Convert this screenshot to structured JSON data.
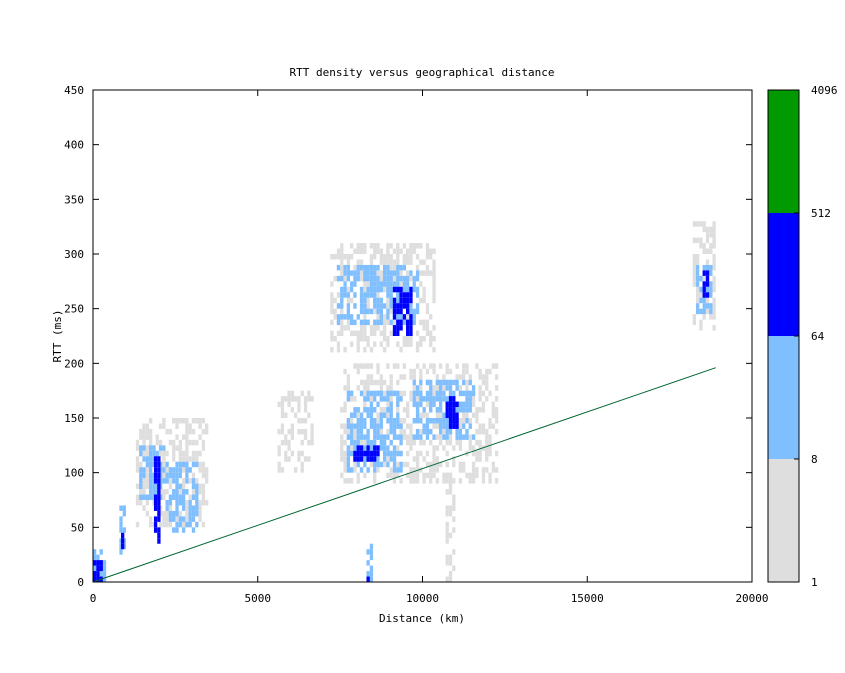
{
  "chart_data": {
    "type": "heatmap",
    "title": "RTT density versus geographical distance",
    "xlabel": "Distance (km)",
    "ylabel": "RTT (ms)",
    "xlim": [
      0,
      20000
    ],
    "ylim": [
      0,
      450
    ],
    "x_ticks": [
      "0",
      "5000",
      "10000",
      "15000",
      "20000"
    ],
    "y_ticks": [
      "0",
      "50",
      "100",
      "150",
      "200",
      "250",
      "300",
      "350",
      "400",
      "450"
    ],
    "grid": false,
    "legend": {
      "type": "colorbar",
      "placement": "right",
      "tick_labels": [
        "1",
        "8",
        "64",
        "512",
        "4096"
      ],
      "bins": [
        {
          "from": 1,
          "to": 8,
          "color": "#dedede"
        },
        {
          "from": 8,
          "to": 64,
          "color": "#80bfff"
        },
        {
          "from": 64,
          "to": 512,
          "color": "#0000ff"
        },
        {
          "from": 512,
          "to": 4096,
          "color": "#009900"
        }
      ]
    },
    "reference_line": {
      "color": "#006633",
      "points": [
        [
          0,
          0
        ],
        [
          18900,
          196
        ]
      ]
    },
    "cell_size": {
      "dx": 100,
      "dy": 5
    },
    "density_regions": [
      {
        "x": [
          0,
          400
        ],
        "y": [
          0,
          30
        ],
        "level": 2
      },
      {
        "x": [
          0,
          250
        ],
        "y": [
          0,
          20
        ],
        "level": 3
      },
      {
        "x": [
          800,
          1000
        ],
        "y": [
          25,
          70
        ],
        "level": 2
      },
      {
        "x": [
          850,
          950
        ],
        "y": [
          30,
          45
        ],
        "level": 3
      },
      {
        "x": [
          1300,
          3500
        ],
        "y": [
          50,
          150
        ],
        "level": 1
      },
      {
        "x": [
          1400,
          2200
        ],
        "y": [
          75,
          125
        ],
        "level": 2
      },
      {
        "x": [
          2200,
          3200
        ],
        "y": [
          45,
          110
        ],
        "level": 2
      },
      {
        "x": [
          1850,
          2050
        ],
        "y": [
          35,
          115
        ],
        "level": 3
      },
      {
        "x": [
          5600,
          6700
        ],
        "y": [
          100,
          175
        ],
        "level": 1
      },
      {
        "x": [
          7200,
          10400
        ],
        "y": [
          210,
          310
        ],
        "level": 1
      },
      {
        "x": [
          7400,
          9900
        ],
        "y": [
          235,
          290
        ],
        "level": 2
      },
      {
        "x": [
          9100,
          9700
        ],
        "y": [
          225,
          270
        ],
        "level": 3
      },
      {
        "x": [
          7500,
          12300
        ],
        "y": [
          90,
          200
        ],
        "level": 1
      },
      {
        "x": [
          7700,
          9400
        ],
        "y": [
          100,
          175
        ],
        "level": 2
      },
      {
        "x": [
          9700,
          11600
        ],
        "y": [
          130,
          185
        ],
        "level": 2
      },
      {
        "x": [
          10700,
          11100
        ],
        "y": [
          140,
          170
        ],
        "level": 3
      },
      {
        "x": [
          7900,
          8700
        ],
        "y": [
          110,
          125
        ],
        "level": 3
      },
      {
        "x": [
          8300,
          8450
        ],
        "y": [
          0,
          40
        ],
        "level": 2
      },
      {
        "x": [
          8300,
          8400
        ],
        "y": [
          0,
          10
        ],
        "level": 3
      },
      {
        "x": [
          10700,
          11000
        ],
        "y": [
          0,
          130
        ],
        "level": 1
      },
      {
        "x": [
          18200,
          18900
        ],
        "y": [
          230,
          330
        ],
        "level": 1
      },
      {
        "x": [
          18300,
          18800
        ],
        "y": [
          245,
          290
        ],
        "level": 2
      },
      {
        "x": [
          18500,
          18650
        ],
        "y": [
          260,
          285
        ],
        "level": 3
      }
    ]
  }
}
